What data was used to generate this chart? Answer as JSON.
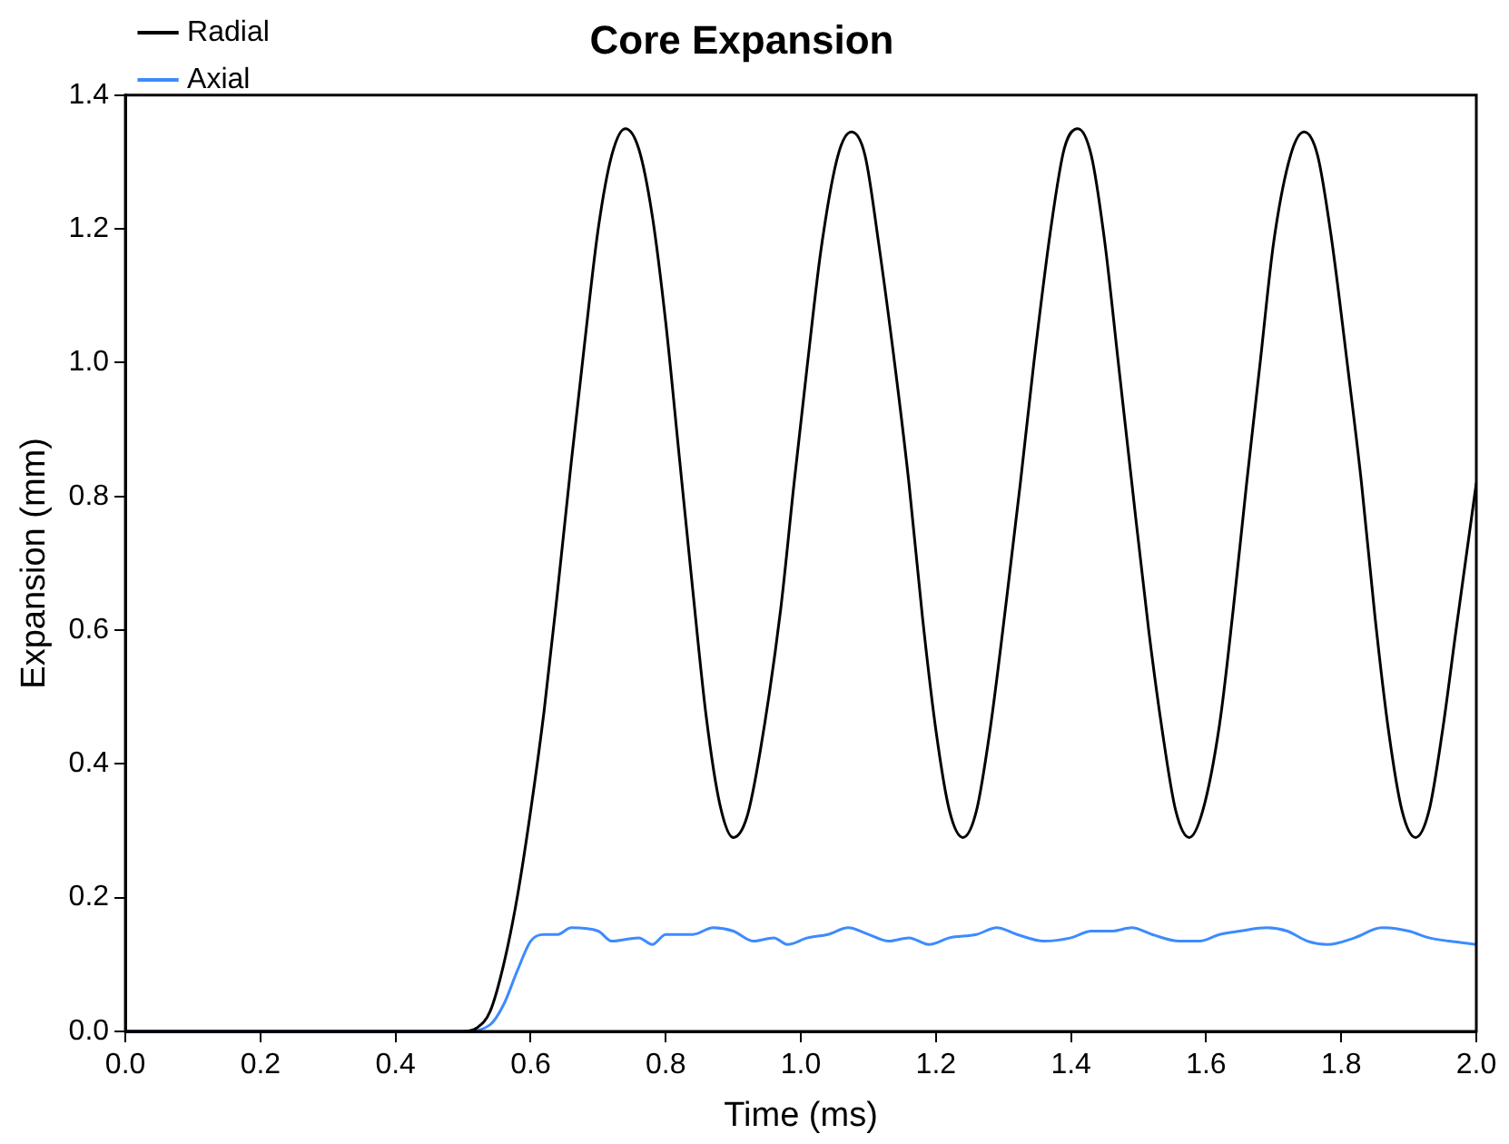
{
  "chart_data": {
    "type": "line",
    "title": "Core Expansion",
    "xlabel": "Time (ms)",
    "ylabel": "Expansion (mm)",
    "xlim": [
      0,
      2
    ],
    "ylim": [
      0,
      1.4
    ],
    "xticks": [
      {
        "value": 0,
        "label": "0.0"
      },
      0.2,
      0.4,
      0.6,
      0.8,
      {
        "value": 1,
        "label": "1.0"
      },
      1.2,
      1.4,
      1.6,
      1.8,
      {
        "value": 2,
        "label": "2.0"
      }
    ],
    "yticks": [
      {
        "value": 0,
        "label": "0.0"
      },
      0.2,
      0.4,
      0.6,
      0.8,
      {
        "value": 1,
        "label": "1.0"
      },
      1.2,
      1.4
    ],
    "grid": false,
    "legend": "top left",
    "marker": "none",
    "line_style": "solid",
    "series": [
      {
        "name": "Radial",
        "color": "#000000",
        "x": [
          0,
          0.5,
          0.52,
          0.54,
          0.56,
          0.58,
          0.6,
          0.62,
          0.64,
          0.66,
          0.68,
          0.7,
          0.72,
          0.74,
          0.76,
          0.78,
          0.8,
          0.82,
          0.84,
          0.86,
          0.88,
          0.9,
          0.92,
          0.94,
          0.97,
          0.99,
          1.01,
          1.03,
          1.055,
          1.075,
          1.095,
          1.115,
          1.14,
          1.16,
          1.18,
          1.2,
          1.22,
          1.24,
          1.26,
          1.28,
          1.305,
          1.325,
          1.345,
          1.37,
          1.39,
          1.41,
          1.43,
          1.45,
          1.47,
          1.49,
          1.515,
          1.535,
          1.555,
          1.575,
          1.595,
          1.62,
          1.64,
          1.66,
          1.68,
          1.7,
          1.725,
          1.745,
          1.765,
          1.785,
          1.81,
          1.83,
          1.85,
          1.87,
          1.89,
          1.91,
          1.93,
          1.95,
          1.97,
          2.0
        ],
        "values": [
          0,
          0,
          0.005,
          0.03,
          0.1,
          0.2,
          0.33,
          0.48,
          0.66,
          0.85,
          1.03,
          1.2,
          1.31,
          1.35,
          1.32,
          1.22,
          1.06,
          0.86,
          0.66,
          0.47,
          0.34,
          0.29,
          0.32,
          0.42,
          0.63,
          0.82,
          1.0,
          1.17,
          1.31,
          1.345,
          1.31,
          1.18,
          0.99,
          0.82,
          0.62,
          0.45,
          0.33,
          0.29,
          0.33,
          0.45,
          0.65,
          0.82,
          1.0,
          1.2,
          1.32,
          1.35,
          1.31,
          1.18,
          1.0,
          0.82,
          0.6,
          0.45,
          0.33,
          0.29,
          0.33,
          0.46,
          0.63,
          0.82,
          1.0,
          1.18,
          1.31,
          1.345,
          1.31,
          1.19,
          0.99,
          0.82,
          0.62,
          0.45,
          0.33,
          0.29,
          0.33,
          0.45,
          0.6,
          0.82
        ]
      },
      {
        "name": "Axial",
        "color": "#3d8bff",
        "x": [
          0,
          0.5,
          0.54,
          0.56,
          0.58,
          0.6,
          0.62,
          0.64,
          0.66,
          0.7,
          0.72,
          0.76,
          0.78,
          0.8,
          0.84,
          0.87,
          0.9,
          0.93,
          0.96,
          0.98,
          1.01,
          1.04,
          1.07,
          1.1,
          1.13,
          1.16,
          1.19,
          1.22,
          1.26,
          1.29,
          1.32,
          1.36,
          1.4,
          1.43,
          1.46,
          1.49,
          1.52,
          1.56,
          1.59,
          1.62,
          1.65,
          1.69,
          1.72,
          1.75,
          1.78,
          1.82,
          1.86,
          1.9,
          1.93,
          1.96,
          2.0
        ],
        "values": [
          0,
          0,
          0.01,
          0.04,
          0.09,
          0.135,
          0.145,
          0.145,
          0.155,
          0.15,
          0.135,
          0.14,
          0.13,
          0.145,
          0.145,
          0.155,
          0.15,
          0.135,
          0.14,
          0.13,
          0.14,
          0.145,
          0.155,
          0.145,
          0.135,
          0.14,
          0.13,
          0.14,
          0.145,
          0.155,
          0.145,
          0.135,
          0.14,
          0.15,
          0.15,
          0.155,
          0.145,
          0.135,
          0.135,
          0.145,
          0.15,
          0.155,
          0.15,
          0.135,
          0.13,
          0.14,
          0.155,
          0.15,
          0.14,
          0.135,
          0.13
        ]
      }
    ]
  }
}
